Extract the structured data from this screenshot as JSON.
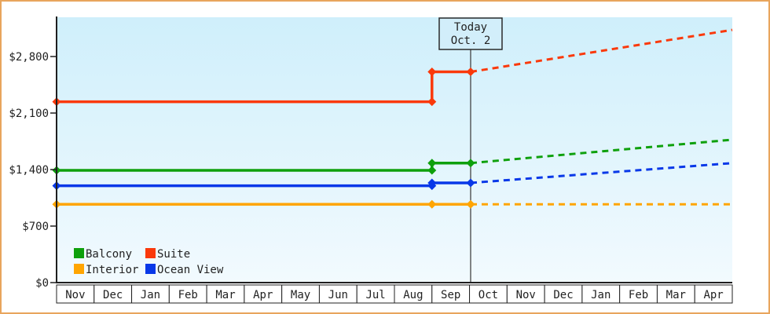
{
  "frame": {
    "border_color": "#e8a55d",
    "plot_bg_top": "#cfeffb",
    "plot_bg_bottom": "#f2fafe",
    "today_box_fill": "#d2eefa",
    "axis_color": "#1f1f1f",
    "today_line_color": "#444444",
    "text_color": "#222222"
  },
  "chart_data": {
    "type": "line",
    "title": "",
    "description_visible_text_only": "",
    "y_axis": {
      "tick_labels": [
        "$0",
        "$700",
        "$1,400",
        "$2,100",
        "$2,800"
      ],
      "tick_values": [
        0,
        700,
        1400,
        2100,
        2800
      ],
      "value_range": [
        0,
        3290
      ],
      "grid": "off"
    },
    "x_axis": {
      "month_labels": [
        "Nov",
        "Dec",
        "Jan",
        "Feb",
        "Mar",
        "Apr",
        "May",
        "Jun",
        "Jul",
        "Aug",
        "Sep",
        "Oct",
        "Nov",
        "Dec",
        "Jan",
        "Feb",
        "Mar",
        "Apr"
      ],
      "month_count": 18
    },
    "today_marker": {
      "line1": "Today",
      "line2": "Oct. 2",
      "month_index": 11.03
    },
    "series": [
      {
        "name": "Interior",
        "color": "#ffa502",
        "points_history": [
          [
            0,
            970
          ],
          [
            10,
            970
          ],
          [
            11.03,
            970
          ]
        ],
        "points_forecast": [
          [
            11.03,
            970
          ],
          [
            18,
            970
          ]
        ]
      },
      {
        "name": "Ocean View",
        "color": "#0838e8",
        "points_history": [
          [
            0,
            1200
          ],
          [
            10,
            1200
          ],
          [
            10,
            1235
          ],
          [
            11.03,
            1235
          ]
        ],
        "points_forecast": [
          [
            11.03,
            1235
          ],
          [
            18,
            1480
          ]
        ]
      },
      {
        "name": "Balcony",
        "color": "#0ea00c",
        "points_history": [
          [
            0,
            1390
          ],
          [
            10,
            1390
          ],
          [
            10,
            1480
          ],
          [
            11.03,
            1480
          ]
        ],
        "points_forecast": [
          [
            11.03,
            1480
          ],
          [
            18,
            1770
          ]
        ]
      },
      {
        "name": "Suite",
        "color": "#fa390b",
        "points_history": [
          [
            0,
            2240
          ],
          [
            10,
            2240
          ],
          [
            10,
            2610
          ],
          [
            11.03,
            2610
          ]
        ],
        "points_forecast": [
          [
            11.03,
            2610
          ],
          [
            18,
            3130
          ]
        ]
      }
    ],
    "legend": {
      "position": "bottom-left",
      "items": [
        {
          "label": "Balcony",
          "color": "#0ea00c"
        },
        {
          "label": "Suite",
          "color": "#fa390b"
        },
        {
          "label": "Interior",
          "color": "#ffa502"
        },
        {
          "label": "Ocean View",
          "color": "#0838e8"
        }
      ]
    }
  }
}
